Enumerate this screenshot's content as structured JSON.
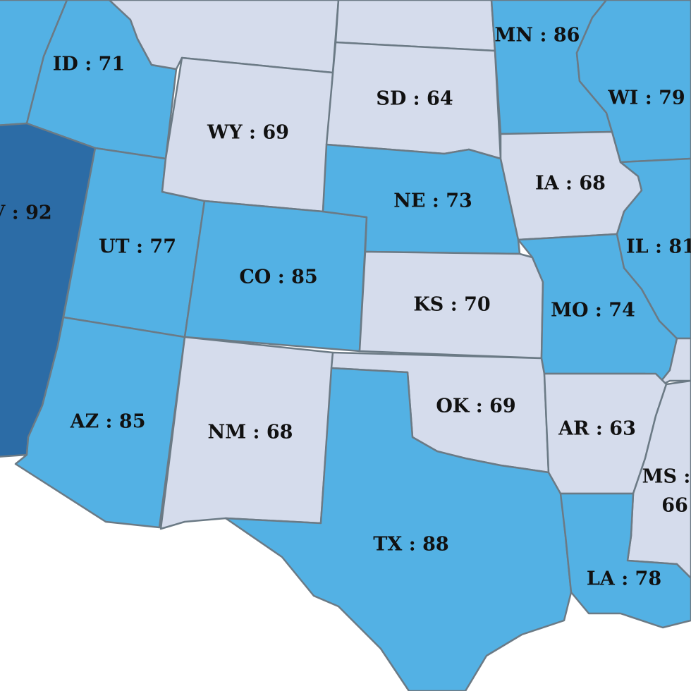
{
  "color_scale": {
    "light": "#d5dcec",
    "medium": "#53b1e4",
    "dark": "#2c6ca6"
  },
  "states": [
    {
      "abbr": "ID",
      "value": 71,
      "label": "ID : 71",
      "tier": "medium"
    },
    {
      "abbr": "NV",
      "value": 92,
      "label": "V : 92",
      "tier": "dark"
    },
    {
      "abbr": "UT",
      "value": 77,
      "label": "UT : 77",
      "tier": "medium"
    },
    {
      "abbr": "AZ",
      "value": 85,
      "label": "AZ : 85",
      "tier": "medium"
    },
    {
      "abbr": "WY",
      "value": 69,
      "label": "WY : 69",
      "tier": "light"
    },
    {
      "abbr": "CO",
      "value": 85,
      "label": "CO : 85",
      "tier": "medium"
    },
    {
      "abbr": "NM",
      "value": 68,
      "label": "NM : 68",
      "tier": "light"
    },
    {
      "abbr": "SD",
      "value": 64,
      "label": "SD : 64",
      "tier": "light"
    },
    {
      "abbr": "NE",
      "value": 73,
      "label": "NE : 73",
      "tier": "medium"
    },
    {
      "abbr": "KS",
      "value": 70,
      "label": "KS : 70",
      "tier": "light"
    },
    {
      "abbr": "OK",
      "value": 69,
      "label": "OK : 69",
      "tier": "light"
    },
    {
      "abbr": "TX",
      "value": 88,
      "label": "TX : 88",
      "tier": "medium"
    },
    {
      "abbr": "MN",
      "value": 86,
      "label": "MN : 86",
      "tier": "medium"
    },
    {
      "abbr": "IA",
      "value": 68,
      "label": "IA : 68",
      "tier": "light"
    },
    {
      "abbr": "MO",
      "value": 74,
      "label": "MO : 74",
      "tier": "medium"
    },
    {
      "abbr": "AR",
      "value": 63,
      "label": "AR : 63",
      "tier": "light"
    },
    {
      "abbr": "LA",
      "value": 78,
      "label": "LA : 78",
      "tier": "medium"
    },
    {
      "abbr": "WI",
      "value": 79,
      "label": "WI : 79",
      "tier": "medium"
    },
    {
      "abbr": "IL",
      "value": 81,
      "label": "IL : 81",
      "tier": "medium"
    },
    {
      "abbr": "MS",
      "value": 66,
      "label_line1": "MS :",
      "label_line2": "66",
      "tier": "light"
    }
  ]
}
